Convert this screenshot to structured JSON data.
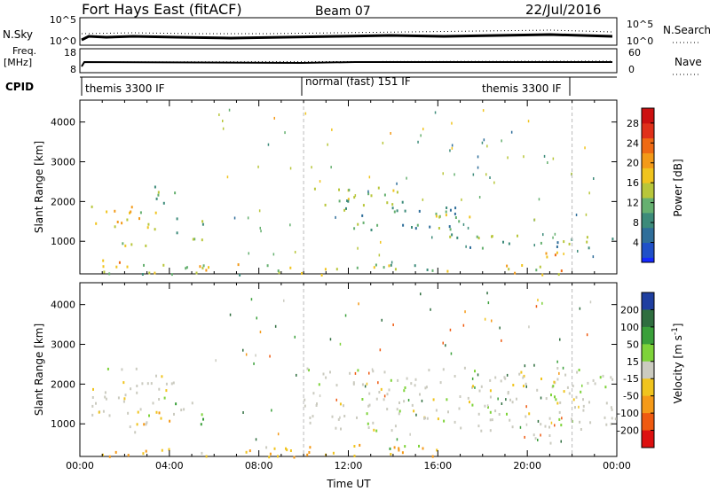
{
  "header": {
    "radar": "Fort Hays East (fitACF)",
    "beam": "Beam 07",
    "date": "22/Jul/2016"
  },
  "strips": {
    "sky": {
      "left_label": "N.Sky",
      "right_label": "N.Search",
      "left_ticks": [
        "10^5",
        "10^0"
      ],
      "right_ticks": [
        "10^5",
        "10^0"
      ]
    },
    "freq": {
      "left_label_1": "Freq.",
      "left_label_2": "[MHz]",
      "right_label": "Nave",
      "left_ticks": [
        "18",
        "8"
      ],
      "right_ticks": [
        "60",
        "0"
      ]
    },
    "cpid": {
      "label": "CPID",
      "programs": [
        "themis 3300 IF",
        "normal (fast) 151 IF",
        "themis 3300 IF"
      ]
    }
  },
  "chart_data": [
    {
      "type": "heatmap",
      "title": "Power",
      "ylabel": "Slant Range [km]",
      "xlabel": "Time UT",
      "ylim": [
        180,
        4550
      ],
      "xlim_hours": [
        0,
        24
      ],
      "yticks": [
        "1000",
        "2000",
        "3000",
        "4000"
      ],
      "xticks": [
        "00:00",
        "04:00",
        "08:00",
        "12:00",
        "16:00",
        "20:00",
        "00:00"
      ],
      "colorbar": {
        "label": "Power [dB]",
        "ticks": [
          "4",
          "8",
          "12",
          "16",
          "20",
          "24",
          "28"
        ],
        "range": [
          0,
          31
        ]
      },
      "regions": [
        {
          "t0": 0.5,
          "t1": 3.6,
          "r0": 1300,
          "r1": 1950,
          "level": 17
        },
        {
          "t0": 3.0,
          "t1": 4.4,
          "r0": 1900,
          "r1": 2450,
          "level": 10
        },
        {
          "t0": 1.5,
          "t1": 3.0,
          "r0": 800,
          "r1": 1100,
          "level": 14
        },
        {
          "t0": 4.2,
          "t1": 5.6,
          "r0": 1000,
          "r1": 1600,
          "level": 11
        },
        {
          "t0": 1.0,
          "t1": 2.0,
          "r0": 300,
          "r1": 700,
          "level": 22
        },
        {
          "t0": 0.5,
          "t1": 21.5,
          "r0": 180,
          "r1": 450,
          "level": 15
        },
        {
          "t0": 10.0,
          "t1": 14.5,
          "r0": 1800,
          "r1": 2400,
          "level": 12
        },
        {
          "t0": 12.0,
          "t1": 17.0,
          "r0": 1300,
          "r1": 1900,
          "level": 10
        },
        {
          "t0": 14.5,
          "t1": 17.5,
          "r0": 1500,
          "r1": 1700,
          "level": 16
        },
        {
          "t0": 16.5,
          "t1": 24.0,
          "r0": 850,
          "r1": 1200,
          "level": 11
        },
        {
          "t0": 20.0,
          "t1": 21.5,
          "r0": 500,
          "r1": 800,
          "level": 20
        },
        {
          "t0": 21.3,
          "t1": 21.8,
          "r0": 180,
          "r1": 400,
          "level": 28
        }
      ]
    },
    {
      "type": "heatmap",
      "title": "Velocity",
      "ylabel": "Slant Range [km]",
      "xlabel": "Time UT",
      "ylim": [
        180,
        4550
      ],
      "xlim_hours": [
        0,
        24
      ],
      "yticks": [
        "1000",
        "2000",
        "3000",
        "4000"
      ],
      "xticks": [
        "00:00",
        "04:00",
        "08:00",
        "12:00",
        "16:00",
        "20:00",
        "00:00"
      ],
      "colorbar": {
        "label": "Velocity [m s^-1]",
        "ticks": [
          "200",
          "100",
          "50",
          "15",
          "-15",
          "-50",
          "-100",
          "-200"
        ]
      },
      "regions": [
        {
          "t0": 0.5,
          "t1": 4.4,
          "r0": 1200,
          "r1": 2450,
          "level": 0
        },
        {
          "t0": 1.5,
          "t1": 3.0,
          "r0": 800,
          "r1": 1100,
          "level": 0
        },
        {
          "t0": 2.5,
          "t1": 4.0,
          "r0": 1000,
          "r1": 1500,
          "level": -30
        },
        {
          "t0": 4.2,
          "t1": 5.6,
          "r0": 1000,
          "r1": 1600,
          "level": 30
        },
        {
          "t0": 0.5,
          "t1": 10.0,
          "r0": 180,
          "r1": 450,
          "level": -30
        },
        {
          "t0": 10.0,
          "t1": 16.0,
          "r0": 180,
          "r1": 500,
          "level": -35
        },
        {
          "t0": 12.0,
          "t1": 15.5,
          "r0": 400,
          "r1": 500,
          "level": 35
        },
        {
          "t0": 10.0,
          "t1": 24.0,
          "r0": 850,
          "r1": 2450,
          "level": 0
        },
        {
          "t0": 20.0,
          "t1": 21.5,
          "r0": 500,
          "r1": 800,
          "level": 0
        }
      ]
    }
  ]
}
